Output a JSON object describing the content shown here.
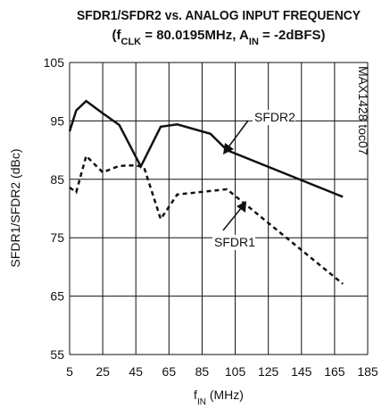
{
  "chart_data": {
    "type": "line",
    "title": "SFDR1/SFDR2 vs. ANALOG INPUT FREQUENCY",
    "subtitle": [
      "(f",
      "CLK",
      " = 80.0195MHz, A",
      "IN",
      " = -2dBFS)"
    ],
    "x_label": [
      "f",
      "IN",
      " (MHz)"
    ],
    "y_label": "SFDR1/SFDR2 (dBc)",
    "side_note": "MAX1428 toc07",
    "xlim": [
      5,
      185
    ],
    "xticks": [
      5,
      25,
      45,
      65,
      85,
      105,
      125,
      145,
      165,
      185
    ],
    "ylim": [
      55,
      105
    ],
    "yticks": [
      55,
      65,
      75,
      85,
      95,
      105
    ],
    "grid": true,
    "series": [
      {
        "name": "SFDR2",
        "color": "#111111",
        "dash": "solid",
        "x": [
          5,
          9,
          15,
          25,
          35,
          48,
          60,
          70,
          90,
          100,
          170
        ],
        "values": [
          93.2,
          96.8,
          98.4,
          96.3,
          94.3,
          87.2,
          94.0,
          94.4,
          92.8,
          90.0,
          82.0
        ]
      },
      {
        "name": "SFDR1",
        "color": "#111111",
        "dash": "dashed",
        "x": [
          5,
          9,
          15,
          25,
          35,
          45,
          50,
          60,
          70,
          100,
          110,
          170
        ],
        "values": [
          83.6,
          82.8,
          89.0,
          86.2,
          87.3,
          87.4,
          87.0,
          78.2,
          82.4,
          83.3,
          81.0,
          67.1
        ]
      }
    ]
  }
}
